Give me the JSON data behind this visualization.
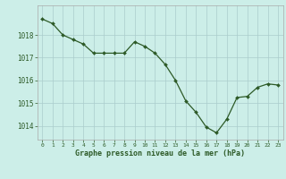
{
  "x": [
    0,
    1,
    2,
    3,
    4,
    5,
    6,
    7,
    8,
    9,
    10,
    11,
    12,
    13,
    14,
    15,
    16,
    17,
    18,
    19,
    20,
    21,
    22,
    23
  ],
  "y": [
    1018.7,
    1018.5,
    1018.0,
    1017.8,
    1017.6,
    1017.2,
    1017.2,
    1017.2,
    1017.2,
    1017.7,
    1017.5,
    1017.2,
    1016.7,
    1016.0,
    1015.1,
    1014.6,
    1013.95,
    1013.7,
    1014.3,
    1015.25,
    1015.3,
    1015.7,
    1015.85,
    1015.8
  ],
  "line_color": "#2d5a27",
  "marker_color": "#2d5a27",
  "bg_color": "#cceee8",
  "grid_color": "#aacccc",
  "xlabel": "Graphe pression niveau de la mer (hPa)",
  "yticks": [
    1014,
    1015,
    1016,
    1017,
    1018
  ],
  "xticks": [
    0,
    1,
    2,
    3,
    4,
    5,
    6,
    7,
    8,
    9,
    10,
    11,
    12,
    13,
    14,
    15,
    16,
    17,
    18,
    19,
    20,
    21,
    22,
    23
  ],
  "ylim": [
    1013.4,
    1019.3
  ],
  "xlim": [
    -0.5,
    23.5
  ]
}
